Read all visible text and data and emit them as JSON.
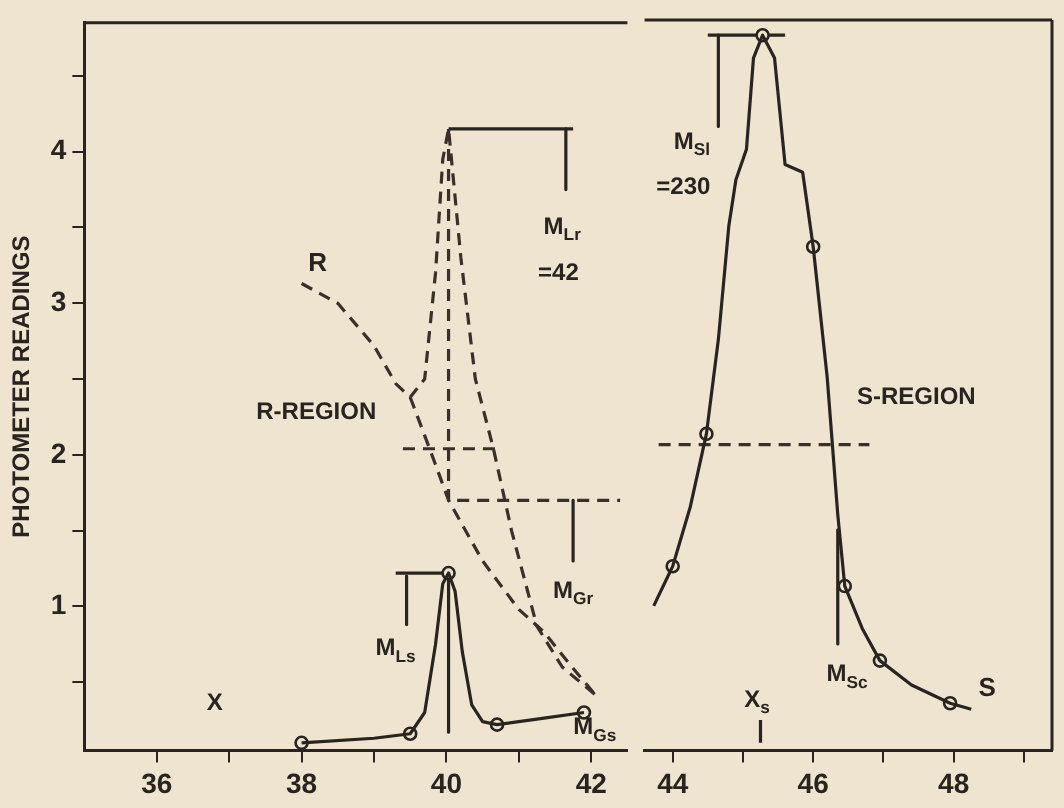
{
  "chart_data": [
    {
      "type": "line",
      "ylabel": "PHOTOMETER READINGS",
      "xlim": [
        35,
        42.5
      ],
      "ylim": [
        0.05,
        4.85
      ],
      "xticks": [
        36,
        {
          "value": 37,
          "label": null
        },
        38,
        {
          "value": 39,
          "label": null
        },
        40,
        {
          "value": 41,
          "label": null
        },
        42
      ],
      "yticks": [
        {
          "value": 0.5,
          "label": null
        },
        1,
        {
          "value": 1.5,
          "label": null
        },
        2,
        {
          "value": 2.5,
          "label": null
        },
        3,
        {
          "value": 3.5,
          "label": null
        },
        4,
        {
          "value": 4.5,
          "label": null
        }
      ],
      "grid": false,
      "legend": false,
      "series": [
        {
          "name": "R",
          "color": "#3a302a",
          "line_style": "dashed",
          "marker": "none",
          "x": [
            38.0,
            38.5,
            39.0,
            39.3,
            39.5,
            39.7,
            39.85,
            39.95,
            40.03,
            40.2,
            40.4,
            40.65,
            40.9,
            41.25,
            41.6,
            42.05
          ],
          "values": [
            3.13,
            3.0,
            2.72,
            2.47,
            2.38,
            2.5,
            3.2,
            3.95,
            4.15,
            3.3,
            2.5,
            2.04,
            1.5,
            0.87,
            0.6,
            0.42
          ]
        },
        {
          "color": "#3a302a",
          "line_style": "dashed",
          "marker": "none",
          "x": [
            39.5,
            39.8,
            40.03,
            40.5,
            41.0,
            41.35,
            41.7,
            42.05
          ],
          "values": [
            2.38,
            2.0,
            1.7,
            1.3,
            0.98,
            0.83,
            0.62,
            0.42
          ]
        },
        {
          "color": "#2a2420",
          "line_style": "solid",
          "marker": "none",
          "x": [
            38.0,
            39.0,
            39.5,
            39.7,
            39.85,
            39.95,
            40.03,
            40.12,
            40.22,
            40.35,
            40.5,
            40.7,
            41.3,
            41.9
          ],
          "values": [
            0.1,
            0.13,
            0.16,
            0.3,
            0.75,
            1.15,
            1.22,
            1.1,
            0.7,
            0.35,
            0.24,
            0.22,
            0.26,
            0.3
          ]
        },
        {
          "type": "scatter",
          "color": "#2a2420",
          "marker": "circle",
          "x": [
            38.0,
            39.5,
            40.03,
            40.7,
            41.9
          ],
          "values": [
            0.1,
            0.16,
            1.22,
            0.22,
            0.3
          ]
        },
        {
          "color": "#2a2420",
          "line_style": "solid",
          "marker": "none",
          "x": [
            40.03,
            41.75
          ],
          "values": [
            4.15,
            4.15
          ]
        },
        {
          "color": "#2a2420",
          "line_style": "solid",
          "marker": "none",
          "x": [
            41.65,
            41.65
          ],
          "values": [
            4.15,
            3.75
          ]
        },
        {
          "color": "#2a2420",
          "line_style": "solid",
          "marker": "none",
          "x": [
            39.3,
            40.03,
            40.03
          ],
          "values": [
            1.22,
            1.22,
            0.17
          ]
        },
        {
          "color": "#2a2420",
          "line_style": "solid",
          "marker": "none",
          "x": [
            39.45,
            39.45
          ],
          "values": [
            1.2,
            0.88
          ]
        },
        {
          "color": "#2a2420",
          "line_style": "solid",
          "marker": "none",
          "x": [
            41.75,
            41.75
          ],
          "values": [
            1.7,
            1.3
          ]
        },
        {
          "color": "#3a302a",
          "line_style": "dashed",
          "marker": "none",
          "x": [
            40.03,
            40.03,
            42.4
          ],
          "values": [
            4.15,
            1.7,
            1.7
          ]
        },
        {
          "color": "#3a302a",
          "line_style": "dashed",
          "marker": "none",
          "x": [
            39.4,
            40.7
          ],
          "values": [
            2.04,
            2.04
          ]
        }
      ],
      "annotations": [
        "M$_{Lr}$",
        "=42",
        "R-REGION",
        "M$_{Gr}$",
        "M$_{Ls}$",
        "M$_{Gs}$",
        "X"
      ]
    },
    {
      "type": "line",
      "xlim": [
        43.6,
        49.4
      ],
      "ylim": [
        0.05,
        4.85
      ],
      "xticks": [
        44,
        {
          "value": 45,
          "label": null
        },
        46,
        {
          "value": 47,
          "label": null
        },
        48,
        {
          "value": 49,
          "label": null
        }
      ],
      "tick_labels": "x",
      "grid": false,
      "legend": false,
      "series": [
        {
          "name": "S",
          "color": "#2a2420",
          "line_style": "solid",
          "marker": "none",
          "x": [
            48.25,
            47.95,
            47.4,
            46.95,
            46.7,
            46.45,
            46.35,
            46.2,
            46.0,
            45.85,
            45.6,
            45.45,
            45.28,
            45.15,
            45.05,
            44.9,
            44.8,
            44.65,
            44.48,
            44.25,
            44.0,
            43.73
          ],
          "values": [
            0.32,
            0.36,
            0.48,
            0.64,
            0.85,
            1.13,
            1.6,
            2.5,
            3.36,
            3.85,
            3.9,
            4.6,
            4.75,
            4.6,
            4.0,
            3.8,
            3.5,
            2.75,
            2.13,
            1.65,
            1.26,
            1.0
          ]
        },
        {
          "type": "scatter",
          "color": "#2a2420",
          "marker": "circle",
          "x": [
            44.0,
            44.48,
            45.28,
            46.0,
            46.45,
            46.95,
            47.95
          ],
          "values": [
            1.26,
            2.13,
            4.75,
            3.36,
            1.13,
            0.64,
            0.36
          ]
        },
        {
          "color": "#2a2420",
          "line_style": "solid",
          "marker": "none",
          "x": [
            44.5,
            45.6
          ],
          "values": [
            4.75,
            4.75
          ]
        },
        {
          "color": "#2a2420",
          "line_style": "solid",
          "marker": "none",
          "x": [
            44.65,
            44.65
          ],
          "values": [
            4.75,
            4.15
          ]
        },
        {
          "color": "#2a2420",
          "line_style": "solid",
          "marker": "none",
          "x": [
            46.35,
            46.35
          ],
          "values": [
            1.5,
            0.75
          ]
        },
        {
          "color": "#2a2420",
          "line_style": "solid",
          "marker": "none",
          "x": [
            45.25,
            45.25
          ],
          "values": [
            0.1,
            0.25
          ]
        },
        {
          "color": "#3a302a",
          "line_style": "dashed",
          "marker": "none",
          "x": [
            43.8,
            46.8
          ],
          "values": [
            2.06,
            2.06
          ]
        }
      ],
      "annotations": [
        "M$_{Sl}$",
        "=230",
        "S-REGION",
        "M$_{Sc}$",
        "X$_{s}$"
      ]
    }
  ]
}
